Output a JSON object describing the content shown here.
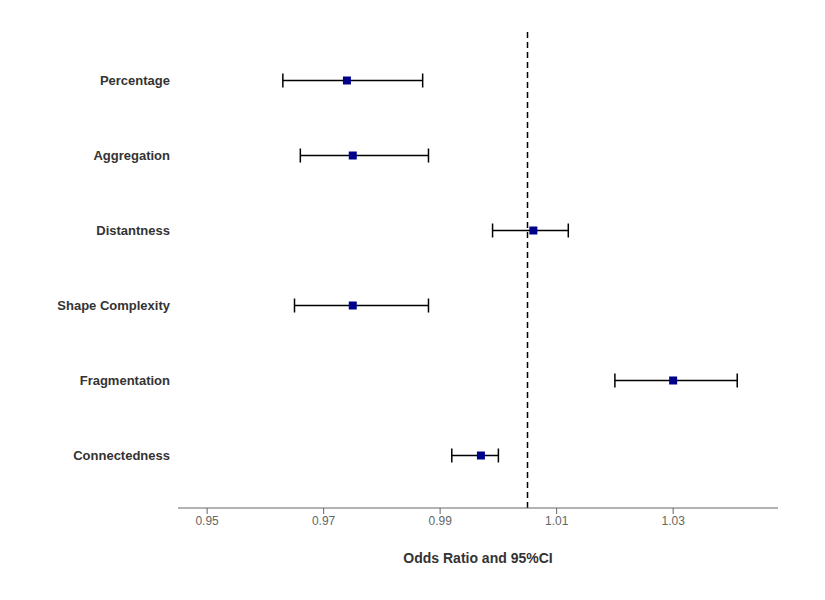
{
  "chart_data": {
    "type": "forest",
    "xlabel": "Odds Ratio and 95%CI",
    "categories": [
      "Connectedness",
      "Fragmentation",
      "Shape Complexity",
      "Distantness",
      "Aggregation",
      "Percentage"
    ],
    "values": [
      0.997,
      1.03,
      0.975,
      1.006,
      0.975,
      0.974
    ],
    "color": "#00008B",
    "marker": "square",
    "error_bars": {
      "lower": [
        0.992,
        1.02,
        0.965,
        0.999,
        0.966,
        0.963
      ],
      "upper": [
        1.0,
        1.041,
        0.988,
        1.012,
        0.988,
        0.987
      ],
      "color": "#000000"
    },
    "ref_line": {
      "value": 1.005,
      "color": "#000000",
      "line_style": "dashed"
    },
    "xlim": [
      0.945,
      1.048
    ],
    "xticks": [
      0.95,
      0.97,
      0.99,
      1.01,
      1.03
    ],
    "grid": false
  }
}
